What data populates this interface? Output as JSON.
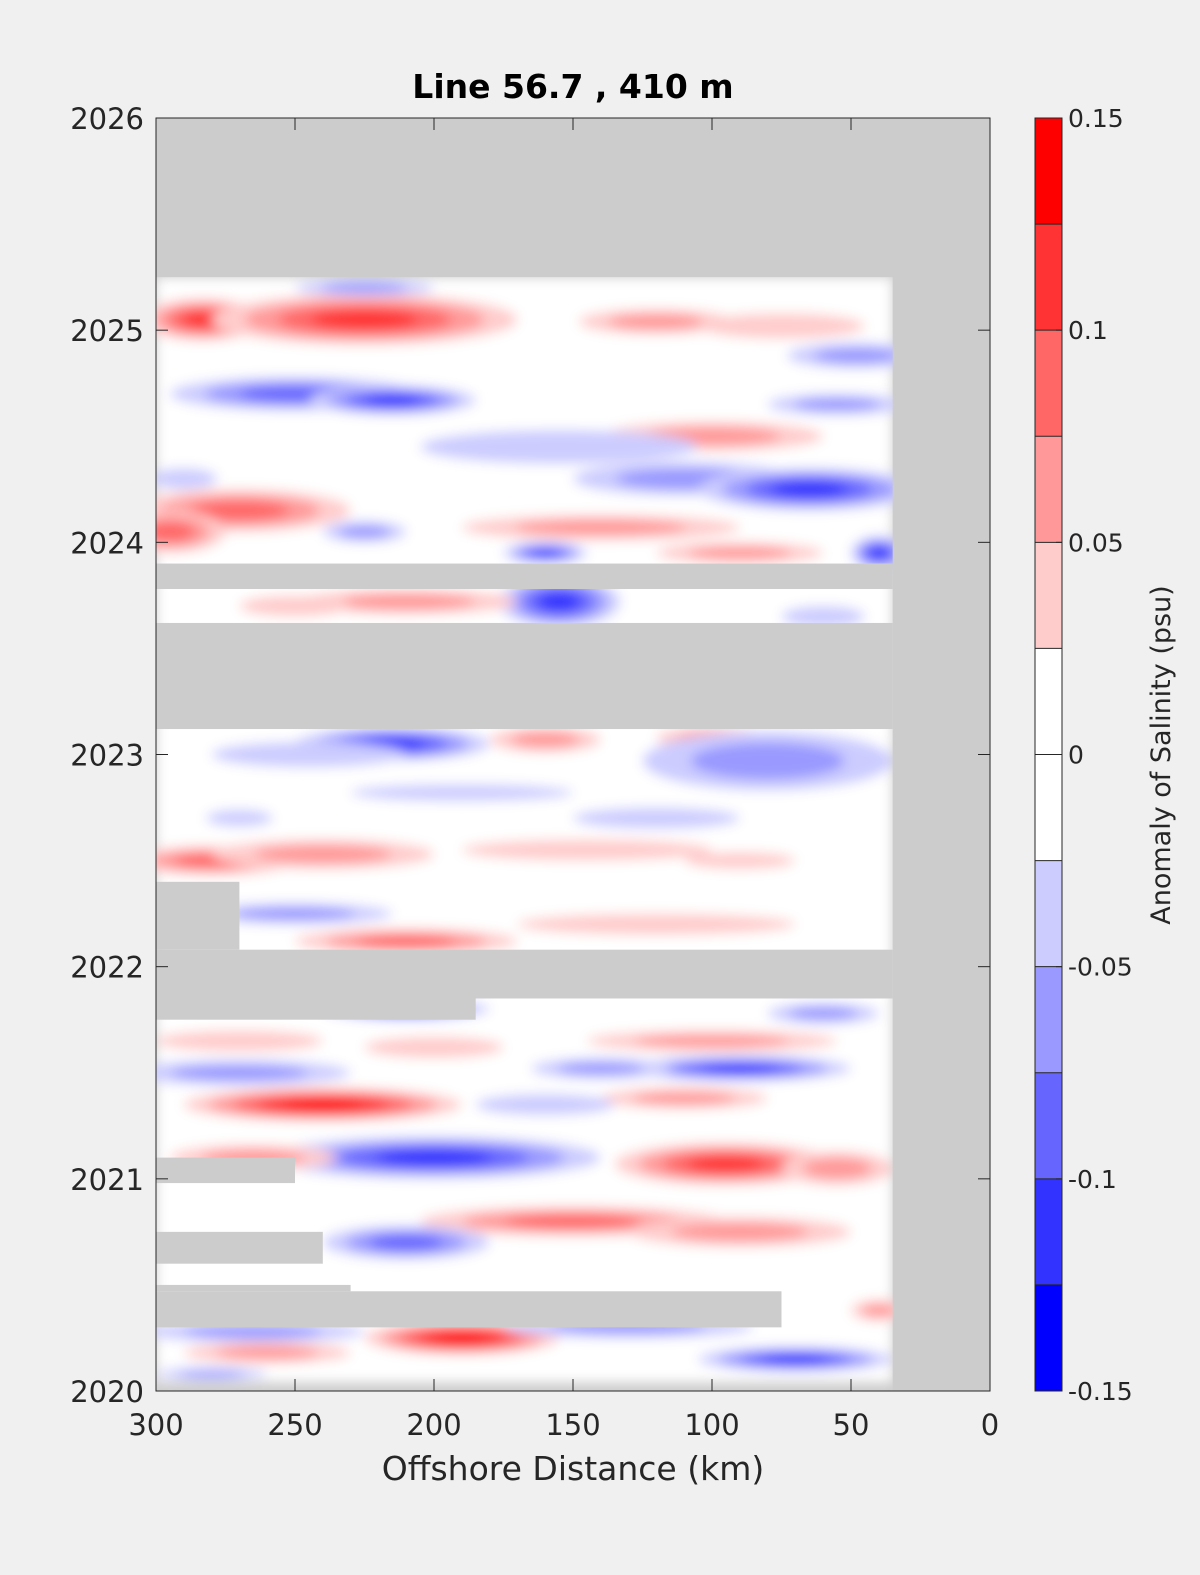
{
  "chart_data": {
    "type": "heatmap",
    "title": "Line 56.7 , 410 m",
    "xlabel": "Offshore Distance (km)",
    "ylabel": "",
    "xlim": [
      300,
      0
    ],
    "ylim": [
      2020,
      2026
    ],
    "xticks": [
      300,
      250,
      200,
      150,
      100,
      50,
      0
    ],
    "yticks": [
      2020,
      2021,
      2022,
      2023,
      2024,
      2025,
      2026
    ],
    "colorbar": {
      "label": "Anomaly of Salinity (psu)",
      "range": [
        -0.15,
        0.15
      ],
      "step": 0.025,
      "tick_values": [
        0.15,
        0.1,
        0.05,
        0,
        -0.05,
        -0.1,
        -0.15
      ],
      "tick_labels": [
        "0.15",
        "0.1",
        "0.05",
        "0",
        "-0.05",
        "-0.1",
        "-0.15"
      ],
      "colors_high_to_low": [
        "#ff0000",
        "#ff3333",
        "#ff6666",
        "#ff9999",
        "#ffcccc",
        "#ffffff",
        "#ffffff",
        "#ccccff",
        "#9999ff",
        "#6666ff",
        "#3333ff",
        "#0000ff"
      ]
    },
    "missing_color": "#cccccc",
    "data_extent": {
      "x": [
        35,
        300
      ],
      "y": [
        2020.04,
        2025.25
      ]
    },
    "missing_regions": [
      {
        "x": [
          0,
          35
        ],
        "y": [
          2020,
          2026
        ]
      },
      {
        "x": [
          0,
          300
        ],
        "y": [
          2025.25,
          2026
        ]
      },
      {
        "x": [
          35,
          300
        ],
        "y": [
          2023.12,
          2023.62
        ]
      },
      {
        "x": [
          35,
          300
        ],
        "y": [
          2023.78,
          2023.9
        ]
      },
      {
        "x": [
          35,
          300
        ],
        "y": [
          2021.85,
          2022.08
        ]
      },
      {
        "x": [
          185,
          300
        ],
        "y": [
          2021.75,
          2021.85
        ]
      },
      {
        "x": [
          270,
          300
        ],
        "y": [
          2022.08,
          2022.4
        ]
      },
      {
        "x": [
          75,
          300
        ],
        "y": [
          2020.3,
          2020.47
        ]
      },
      {
        "x": [
          230,
          300
        ],
        "y": [
          2020.47,
          2020.5
        ]
      },
      {
        "x": [
          240,
          300
        ],
        "y": [
          2020.6,
          2020.75
        ]
      },
      {
        "x": [
          250,
          300
        ],
        "y": [
          2020.98,
          2021.1
        ]
      }
    ],
    "anomaly_features": [
      {
        "x": 283,
        "y": 2025.05,
        "value": 0.1,
        "rx": 22,
        "ry": 0.1
      },
      {
        "x": 225,
        "y": 2025.05,
        "value": 0.11,
        "rx": 55,
        "ry": 0.12
      },
      {
        "x": 120,
        "y": 2025.04,
        "value": 0.05,
        "rx": 28,
        "ry": 0.06
      },
      {
        "x": 75,
        "y": 2025.02,
        "value": 0.04,
        "rx": 30,
        "ry": 0.06
      },
      {
        "x": 225,
        "y": 2025.2,
        "value": -0.05,
        "rx": 25,
        "ry": 0.04
      },
      {
        "x": 250,
        "y": 2024.7,
        "value": -0.08,
        "rx": 45,
        "ry": 0.08
      },
      {
        "x": 215,
        "y": 2024.67,
        "value": -0.11,
        "rx": 30,
        "ry": 0.07
      },
      {
        "x": 48,
        "y": 2024.88,
        "value": -0.07,
        "rx": 25,
        "ry": 0.06
      },
      {
        "x": 55,
        "y": 2024.65,
        "value": -0.05,
        "rx": 25,
        "ry": 0.05
      },
      {
        "x": 100,
        "y": 2024.5,
        "value": 0.05,
        "rx": 40,
        "ry": 0.07
      },
      {
        "x": 155,
        "y": 2024.45,
        "value": -0.04,
        "rx": 50,
        "ry": 0.08
      },
      {
        "x": 110,
        "y": 2024.3,
        "value": -0.07,
        "rx": 40,
        "ry": 0.08
      },
      {
        "x": 65,
        "y": 2024.25,
        "value": -0.12,
        "rx": 40,
        "ry": 0.1
      },
      {
        "x": 290,
        "y": 2024.3,
        "value": -0.04,
        "rx": 12,
        "ry": 0.05
      },
      {
        "x": 270,
        "y": 2024.15,
        "value": 0.09,
        "rx": 40,
        "ry": 0.1
      },
      {
        "x": 295,
        "y": 2024.05,
        "value": 0.08,
        "rx": 20,
        "ry": 0.1
      },
      {
        "x": 225,
        "y": 2024.05,
        "value": -0.05,
        "rx": 15,
        "ry": 0.05
      },
      {
        "x": 140,
        "y": 2024.07,
        "value": 0.07,
        "rx": 50,
        "ry": 0.06
      },
      {
        "x": 90,
        "y": 2023.95,
        "value": 0.07,
        "rx": 30,
        "ry": 0.05
      },
      {
        "x": 160,
        "y": 2023.95,
        "value": -0.12,
        "rx": 15,
        "ry": 0.05
      },
      {
        "x": 40,
        "y": 2023.95,
        "value": -0.1,
        "rx": 10,
        "ry": 0.08
      },
      {
        "x": 155,
        "y": 2023.72,
        "value": -0.11,
        "rx": 22,
        "ry": 0.12
      },
      {
        "x": 210,
        "y": 2023.72,
        "value": 0.05,
        "rx": 40,
        "ry": 0.06
      },
      {
        "x": 250,
        "y": 2023.7,
        "value": 0.03,
        "rx": 20,
        "ry": 0.05
      },
      {
        "x": 60,
        "y": 2023.65,
        "value": -0.04,
        "rx": 15,
        "ry": 0.05
      },
      {
        "x": 215,
        "y": 2023.05,
        "value": -0.1,
        "rx": 35,
        "ry": 0.08
      },
      {
        "x": 160,
        "y": 2023.07,
        "value": 0.07,
        "rx": 20,
        "ry": 0.06
      },
      {
        "x": 100,
        "y": 2023.08,
        "value": 0.05,
        "rx": 20,
        "ry": 0.05
      },
      {
        "x": 80,
        "y": 2022.97,
        "value": -0.07,
        "rx": 45,
        "ry": 0.14
      },
      {
        "x": 245,
        "y": 2023.0,
        "value": -0.04,
        "rx": 35,
        "ry": 0.06
      },
      {
        "x": 190,
        "y": 2022.82,
        "value": -0.04,
        "rx": 40,
        "ry": 0.04
      },
      {
        "x": 270,
        "y": 2022.7,
        "value": -0.04,
        "rx": 12,
        "ry": 0.04
      },
      {
        "x": 120,
        "y": 2022.7,
        "value": -0.04,
        "rx": 30,
        "ry": 0.05
      },
      {
        "x": 280,
        "y": 2022.5,
        "value": 0.09,
        "rx": 30,
        "ry": 0.07
      },
      {
        "x": 240,
        "y": 2022.53,
        "value": 0.05,
        "rx": 40,
        "ry": 0.07
      },
      {
        "x": 145,
        "y": 2022.55,
        "value": 0.04,
        "rx": 45,
        "ry": 0.05
      },
      {
        "x": 90,
        "y": 2022.5,
        "value": 0.04,
        "rx": 20,
        "ry": 0.04
      },
      {
        "x": 250,
        "y": 2022.25,
        "value": -0.05,
        "rx": 35,
        "ry": 0.05
      },
      {
        "x": 210,
        "y": 2022.12,
        "value": 0.08,
        "rx": 40,
        "ry": 0.06
      },
      {
        "x": 120,
        "y": 2022.2,
        "value": 0.04,
        "rx": 50,
        "ry": 0.05
      },
      {
        "x": 210,
        "y": 2021.8,
        "value": -0.11,
        "rx": 30,
        "ry": 0.05
      },
      {
        "x": 60,
        "y": 2021.78,
        "value": -0.06,
        "rx": 20,
        "ry": 0.05
      },
      {
        "x": 270,
        "y": 2021.65,
        "value": 0.04,
        "rx": 30,
        "ry": 0.05
      },
      {
        "x": 200,
        "y": 2021.62,
        "value": 0.04,
        "rx": 25,
        "ry": 0.05
      },
      {
        "x": 100,
        "y": 2021.65,
        "value": 0.05,
        "rx": 45,
        "ry": 0.05
      },
      {
        "x": 270,
        "y": 2021.5,
        "value": -0.07,
        "rx": 40,
        "ry": 0.06
      },
      {
        "x": 90,
        "y": 2021.52,
        "value": -0.1,
        "rx": 40,
        "ry": 0.06
      },
      {
        "x": 140,
        "y": 2021.52,
        "value": -0.05,
        "rx": 25,
        "ry": 0.05
      },
      {
        "x": 240,
        "y": 2021.35,
        "value": 0.14,
        "rx": 50,
        "ry": 0.08
      },
      {
        "x": 110,
        "y": 2021.38,
        "value": 0.05,
        "rx": 30,
        "ry": 0.05
      },
      {
        "x": 160,
        "y": 2021.35,
        "value": -0.04,
        "rx": 25,
        "ry": 0.05
      },
      {
        "x": 200,
        "y": 2021.1,
        "value": -0.1,
        "rx": 60,
        "ry": 0.1
      },
      {
        "x": 95,
        "y": 2021.07,
        "value": 0.1,
        "rx": 40,
        "ry": 0.1
      },
      {
        "x": 55,
        "y": 2021.05,
        "value": 0.07,
        "rx": 20,
        "ry": 0.08
      },
      {
        "x": 265,
        "y": 2021.1,
        "value": 0.05,
        "rx": 30,
        "ry": 0.06
      },
      {
        "x": 150,
        "y": 2020.8,
        "value": 0.08,
        "rx": 55,
        "ry": 0.07
      },
      {
        "x": 90,
        "y": 2020.75,
        "value": 0.05,
        "rx": 40,
        "ry": 0.07
      },
      {
        "x": 210,
        "y": 2020.7,
        "value": -0.09,
        "rx": 30,
        "ry": 0.08
      },
      {
        "x": 190,
        "y": 2020.25,
        "value": 0.13,
        "rx": 35,
        "ry": 0.08
      },
      {
        "x": 265,
        "y": 2020.28,
        "value": -0.06,
        "rx": 40,
        "ry": 0.05
      },
      {
        "x": 130,
        "y": 2020.3,
        "value": -0.06,
        "rx": 45,
        "ry": 0.05
      },
      {
        "x": 70,
        "y": 2020.15,
        "value": -0.1,
        "rx": 35,
        "ry": 0.06
      },
      {
        "x": 40,
        "y": 2020.38,
        "value": 0.05,
        "rx": 10,
        "ry": 0.05
      },
      {
        "x": 280,
        "y": 2020.08,
        "value": -0.05,
        "rx": 20,
        "ry": 0.03
      },
      {
        "x": 260,
        "y": 2020.18,
        "value": 0.07,
        "rx": 30,
        "ry": 0.05
      }
    ]
  }
}
